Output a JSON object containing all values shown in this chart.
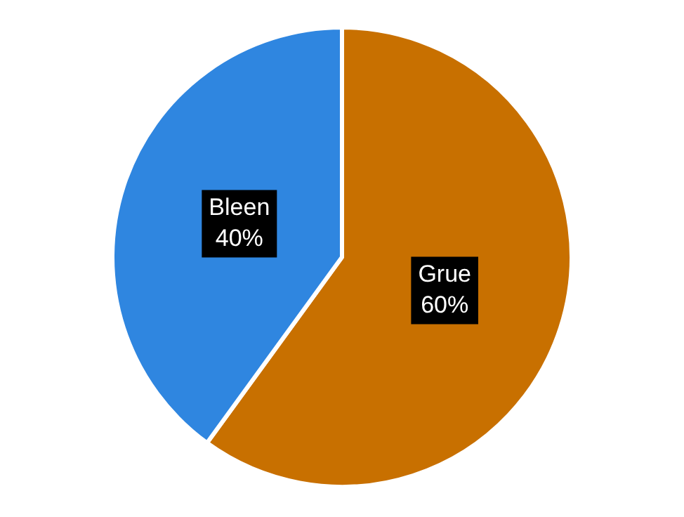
{
  "chart_data": {
    "type": "pie",
    "categories": [
      "Grue",
      "Bleen"
    ],
    "values": [
      60,
      40
    ],
    "value_labels": [
      "60%",
      "40%"
    ],
    "colors": [
      "#c87000",
      "#2f86e0"
    ],
    "legend": false
  }
}
